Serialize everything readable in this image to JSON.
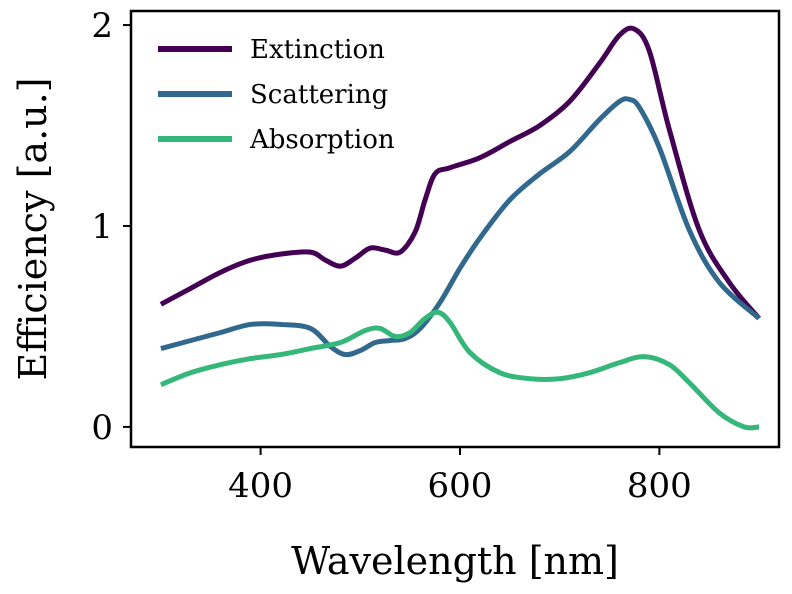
{
  "chart_data": {
    "type": "line",
    "xlabel": "Wavelength [nm]",
    "ylabel": "Efficiency [a.u.]",
    "xlim": [
      270,
      920
    ],
    "ylim": [
      -0.1,
      2.07
    ],
    "xticks": [
      400,
      600,
      800
    ],
    "yticks": [
      0,
      1,
      2
    ],
    "grid": false,
    "legend_position": "top-left",
    "series": [
      {
        "name": "Extinction",
        "color": "#440154",
        "x": [
          300,
          330,
          360,
          390,
          420,
          450,
          465,
          480,
          495,
          510,
          525,
          540,
          555,
          565,
          575,
          590,
          620,
          650,
          680,
          710,
          740,
          760,
          775,
          790,
          810,
          840,
          870,
          900
        ],
        "y": [
          0.61,
          0.69,
          0.77,
          0.83,
          0.86,
          0.87,
          0.83,
          0.8,
          0.84,
          0.89,
          0.88,
          0.87,
          0.97,
          1.13,
          1.26,
          1.29,
          1.34,
          1.42,
          1.5,
          1.62,
          1.81,
          1.95,
          1.98,
          1.87,
          1.48,
          0.98,
          0.72,
          0.54
        ]
      },
      {
        "name": "Scattering",
        "color": "#31688e",
        "x": [
          300,
          330,
          360,
          390,
          420,
          450,
          470,
          485,
          500,
          515,
          530,
          545,
          560,
          580,
          600,
          620,
          650,
          680,
          710,
          740,
          760,
          770,
          780,
          800,
          830,
          860,
          900
        ],
        "y": [
          0.39,
          0.43,
          0.47,
          0.51,
          0.51,
          0.49,
          0.4,
          0.36,
          0.38,
          0.42,
          0.43,
          0.44,
          0.49,
          0.62,
          0.79,
          0.94,
          1.13,
          1.26,
          1.37,
          1.53,
          1.62,
          1.63,
          1.59,
          1.39,
          0.98,
          0.72,
          0.54
        ]
      },
      {
        "name": "Absorption",
        "color": "#35b779",
        "x": [
          300,
          330,
          360,
          390,
          420,
          450,
          480,
          505,
          520,
          535,
          550,
          565,
          578,
          590,
          610,
          640,
          670,
          700,
          730,
          760,
          785,
          810,
          830,
          860,
          885,
          900
        ],
        "y": [
          0.21,
          0.27,
          0.31,
          0.34,
          0.36,
          0.39,
          0.42,
          0.48,
          0.49,
          0.45,
          0.47,
          0.54,
          0.57,
          0.52,
          0.37,
          0.27,
          0.24,
          0.24,
          0.27,
          0.32,
          0.35,
          0.31,
          0.22,
          0.07,
          0.0,
          0.0
        ]
      }
    ]
  }
}
